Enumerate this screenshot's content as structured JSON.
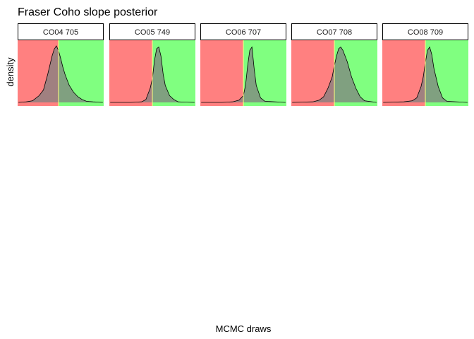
{
  "chart_data": {
    "type": "area",
    "title": "Fraser Coho slope posterior",
    "xlabel": "MCMC draws",
    "ylabel": "density",
    "colors": {
      "negative_region": "#ff8080",
      "positive_region": "#80ff80",
      "density_fill": "#808080",
      "density_line": "#000000",
      "threshold_line": "#ffff80",
      "strip_fill": "#ffffff",
      "strip_border": "#000000"
    },
    "threshold": 0,
    "xlim": [
      -1,
      1
    ],
    "ylim": [
      0,
      1.1
    ],
    "panels": [
      {
        "label": "CO04 705",
        "threshold": -0.05,
        "x": [
          -0.98,
          -0.8,
          -0.65,
          -0.5,
          -0.4,
          -0.3,
          -0.2,
          -0.15,
          -0.1,
          -0.05,
          0,
          0.05,
          0.1,
          0.15,
          0.2,
          0.3,
          0.4,
          0.5,
          0.6,
          0.75,
          0.98
        ],
        "y": [
          0,
          0.01,
          0.03,
          0.12,
          0.22,
          0.5,
          0.82,
          0.94,
          1.0,
          0.92,
          0.78,
          0.63,
          0.5,
          0.4,
          0.3,
          0.18,
          0.1,
          0.05,
          0.02,
          0.01,
          0
        ]
      },
      {
        "label": "CO05 749",
        "threshold": 0,
        "x": [
          -0.98,
          -0.5,
          -0.25,
          -0.15,
          -0.05,
          0,
          0.05,
          0.1,
          0.15,
          0.2,
          0.25,
          0.3,
          0.4,
          0.5,
          0.6,
          0.98
        ],
        "y": [
          0,
          0,
          0.01,
          0.05,
          0.25,
          0.42,
          0.75,
          0.95,
          0.98,
          0.82,
          0.5,
          0.3,
          0.12,
          0.05,
          0.01,
          0
        ]
      },
      {
        "label": "CO06 707",
        "threshold": 0,
        "x": [
          -0.98,
          -0.5,
          -0.25,
          -0.1,
          0,
          0.05,
          0.1,
          0.15,
          0.2,
          0.25,
          0.3,
          0.4,
          0.5,
          0.98
        ],
        "y": [
          0,
          0,
          0.01,
          0.04,
          0.12,
          0.3,
          0.65,
          0.92,
          0.98,
          0.6,
          0.3,
          0.08,
          0.02,
          0
        ]
      },
      {
        "label": "CO07 708",
        "threshold": 0,
        "x": [
          -0.98,
          -0.5,
          -0.35,
          -0.25,
          -0.15,
          -0.05,
          0,
          0.05,
          0.1,
          0.15,
          0.2,
          0.3,
          0.4,
          0.5,
          0.6,
          0.7,
          0.98
        ],
        "y": [
          0,
          0.01,
          0.04,
          0.1,
          0.25,
          0.45,
          0.65,
          0.82,
          0.95,
          0.98,
          0.92,
          0.72,
          0.45,
          0.25,
          0.1,
          0.03,
          0
        ]
      },
      {
        "label": "CO08 709",
        "threshold": 0,
        "x": [
          -0.98,
          -0.5,
          -0.3,
          -0.2,
          -0.1,
          -0.05,
          0,
          0.05,
          0.1,
          0.15,
          0.2,
          0.3,
          0.4,
          0.5,
          0.98
        ],
        "y": [
          0,
          0.01,
          0.03,
          0.08,
          0.28,
          0.45,
          0.7,
          0.92,
          0.98,
          0.85,
          0.6,
          0.28,
          0.08,
          0.02,
          0
        ]
      }
    ]
  }
}
